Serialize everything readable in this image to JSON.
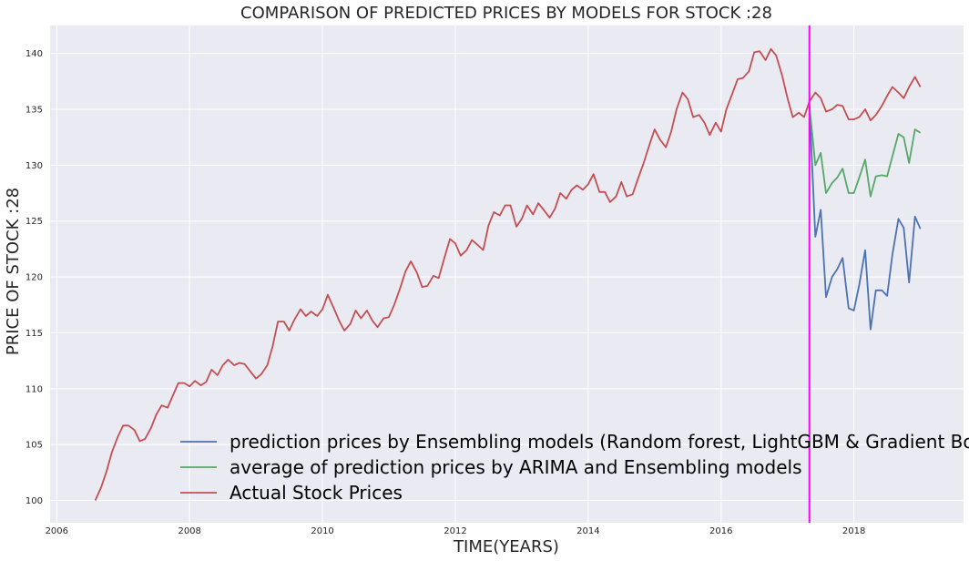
{
  "chart_data": {
    "type": "line",
    "title": "COMPARISON OF PREDICTED PRICES BY MODELS FOR STOCK :28",
    "xlabel": "TIME(YEARS)",
    "ylabel": "PRICE OF STOCK :28",
    "xlim": [
      2005.9,
      2019.65
    ],
    "ylim": [
      98.0,
      142.5
    ],
    "xticks": [
      "2006",
      "2008",
      "2010",
      "2012",
      "2014",
      "2016",
      "2018"
    ],
    "yticks": [
      "100",
      "105",
      "110",
      "115",
      "120",
      "125",
      "130",
      "135",
      "140"
    ],
    "grid": true,
    "legend_position": "bottom-right",
    "vertical_marker": {
      "x": 2017.33,
      "color": "#ff00ff"
    },
    "colors": {
      "background": "#eaeaf2",
      "grid": "#ffffff"
    },
    "series": [
      {
        "name": "prediction prices by Ensembling models (Random forest, LightGBM & Gradient Boosting)",
        "color": "#4c72b0",
        "x": [
          2017.33,
          2017.42,
          2017.5,
          2017.58,
          2017.67,
          2017.75,
          2017.83,
          2017.92,
          2018.0,
          2018.08,
          2018.17,
          2018.25,
          2018.33,
          2018.42,
          2018.5,
          2018.58,
          2018.67,
          2018.75,
          2018.83,
          2018.92,
          2019.0
        ],
        "y": [
          135.3,
          123.6,
          126.0,
          118.2,
          120.0,
          120.7,
          121.7,
          117.2,
          117.0,
          119.3,
          122.4,
          115.3,
          118.8,
          118.8,
          118.3,
          122.0,
          125.2,
          124.4,
          119.5,
          125.4,
          124.3
        ]
      },
      {
        "name": "average of prediction prices by ARIMA and Ensembling models",
        "color": "#55a868",
        "x": [
          2017.33,
          2017.42,
          2017.5,
          2017.58,
          2017.67,
          2017.75,
          2017.83,
          2017.92,
          2018.0,
          2018.08,
          2018.17,
          2018.25,
          2018.33,
          2018.42,
          2018.5,
          2018.58,
          2018.67,
          2018.75,
          2018.83,
          2018.92,
          2019.0
        ],
        "y": [
          135.3,
          130.0,
          131.1,
          127.5,
          128.4,
          128.9,
          129.7,
          127.5,
          127.5,
          128.9,
          130.5,
          127.2,
          129.0,
          129.1,
          129.0,
          130.8,
          132.8,
          132.5,
          130.2,
          133.2,
          132.9
        ]
      },
      {
        "name": "Actual Stock Prices",
        "color": "#c44e52",
        "x": [
          2006.58,
          2006.67,
          2006.75,
          2006.83,
          2006.92,
          2007.0,
          2007.08,
          2007.17,
          2007.25,
          2007.33,
          2007.42,
          2007.5,
          2007.58,
          2007.67,
          2007.75,
          2007.83,
          2007.92,
          2008.0,
          2008.08,
          2008.17,
          2008.25,
          2008.33,
          2008.42,
          2008.5,
          2008.58,
          2008.67,
          2008.75,
          2008.83,
          2008.92,
          2009.0,
          2009.08,
          2009.17,
          2009.25,
          2009.33,
          2009.42,
          2009.5,
          2009.58,
          2009.67,
          2009.75,
          2009.83,
          2009.92,
          2010.0,
          2010.08,
          2010.17,
          2010.25,
          2010.33,
          2010.42,
          2010.5,
          2010.58,
          2010.67,
          2010.75,
          2010.83,
          2010.92,
          2011.0,
          2011.08,
          2011.17,
          2011.25,
          2011.33,
          2011.42,
          2011.5,
          2011.58,
          2011.67,
          2011.75,
          2011.83,
          2011.92,
          2012.0,
          2012.08,
          2012.17,
          2012.25,
          2012.33,
          2012.42,
          2012.5,
          2012.58,
          2012.67,
          2012.75,
          2012.83,
          2012.92,
          2013.0,
          2013.08,
          2013.17,
          2013.25,
          2013.33,
          2013.42,
          2013.5,
          2013.58,
          2013.67,
          2013.75,
          2013.83,
          2013.92,
          2014.0,
          2014.08,
          2014.17,
          2014.25,
          2014.33,
          2014.42,
          2014.5,
          2014.58,
          2014.67,
          2014.75,
          2014.83,
          2014.92,
          2015.0,
          2015.08,
          2015.17,
          2015.25,
          2015.33,
          2015.42,
          2015.5,
          2015.58,
          2015.67,
          2015.75,
          2015.83,
          2015.92,
          2016.0,
          2016.08,
          2016.17,
          2016.25,
          2016.33,
          2016.42,
          2016.5,
          2016.58,
          2016.67,
          2016.75,
          2016.83,
          2016.92,
          2017.0,
          2017.08,
          2017.17,
          2017.25,
          2017.33,
          2017.42,
          2017.5,
          2017.58,
          2017.67,
          2017.75,
          2017.83,
          2017.92,
          2018.0,
          2018.08,
          2018.17,
          2018.25,
          2018.33,
          2018.42,
          2018.5,
          2018.58,
          2018.67,
          2018.75,
          2018.83,
          2018.92,
          2019.0
        ],
        "y": [
          100.0,
          101.2,
          102.6,
          104.3,
          105.7,
          106.7,
          106.7,
          106.3,
          105.3,
          105.5,
          106.5,
          107.7,
          108.5,
          108.3,
          109.4,
          110.5,
          110.5,
          110.2,
          110.7,
          110.3,
          110.6,
          111.7,
          111.2,
          112.1,
          112.6,
          112.1,
          112.3,
          112.2,
          111.5,
          110.9,
          111.3,
          112.1,
          113.8,
          116.0,
          116.0,
          115.2,
          116.2,
          117.1,
          116.5,
          116.9,
          116.5,
          117.1,
          118.4,
          117.2,
          116.1,
          115.2,
          115.8,
          117.0,
          116.3,
          117.0,
          116.1,
          115.5,
          116.3,
          116.4,
          117.5,
          119.0,
          120.5,
          121.4,
          120.4,
          119.1,
          119.2,
          120.1,
          119.9,
          121.6,
          123.4,
          123.0,
          121.9,
          122.4,
          123.3,
          122.9,
          122.4,
          124.6,
          125.8,
          125.5,
          126.4,
          126.4,
          124.5,
          125.2,
          126.4,
          125.6,
          126.6,
          126.0,
          125.3,
          126.1,
          127.5,
          127.0,
          127.8,
          128.2,
          127.8,
          128.3,
          129.2,
          127.6,
          127.6,
          126.7,
          127.2,
          128.5,
          127.2,
          127.4,
          128.8,
          130.1,
          131.8,
          133.2,
          132.3,
          131.6,
          133.0,
          135.0,
          136.5,
          135.9,
          134.3,
          134.5,
          133.8,
          132.7,
          133.8,
          133.0,
          135.0,
          136.4,
          137.7,
          137.8,
          138.4,
          140.1,
          140.2,
          139.4,
          140.4,
          139.8,
          138.0,
          136.0,
          134.3,
          134.7,
          134.3,
          135.7,
          136.5,
          136.0,
          134.8,
          135.0,
          135.4,
          135.3,
          134.1,
          134.1,
          134.3,
          135.0,
          134.0,
          134.5,
          135.3,
          136.2,
          137.0,
          136.5,
          136.0,
          137.0,
          137.9,
          137.0
        ]
      }
    ]
  }
}
